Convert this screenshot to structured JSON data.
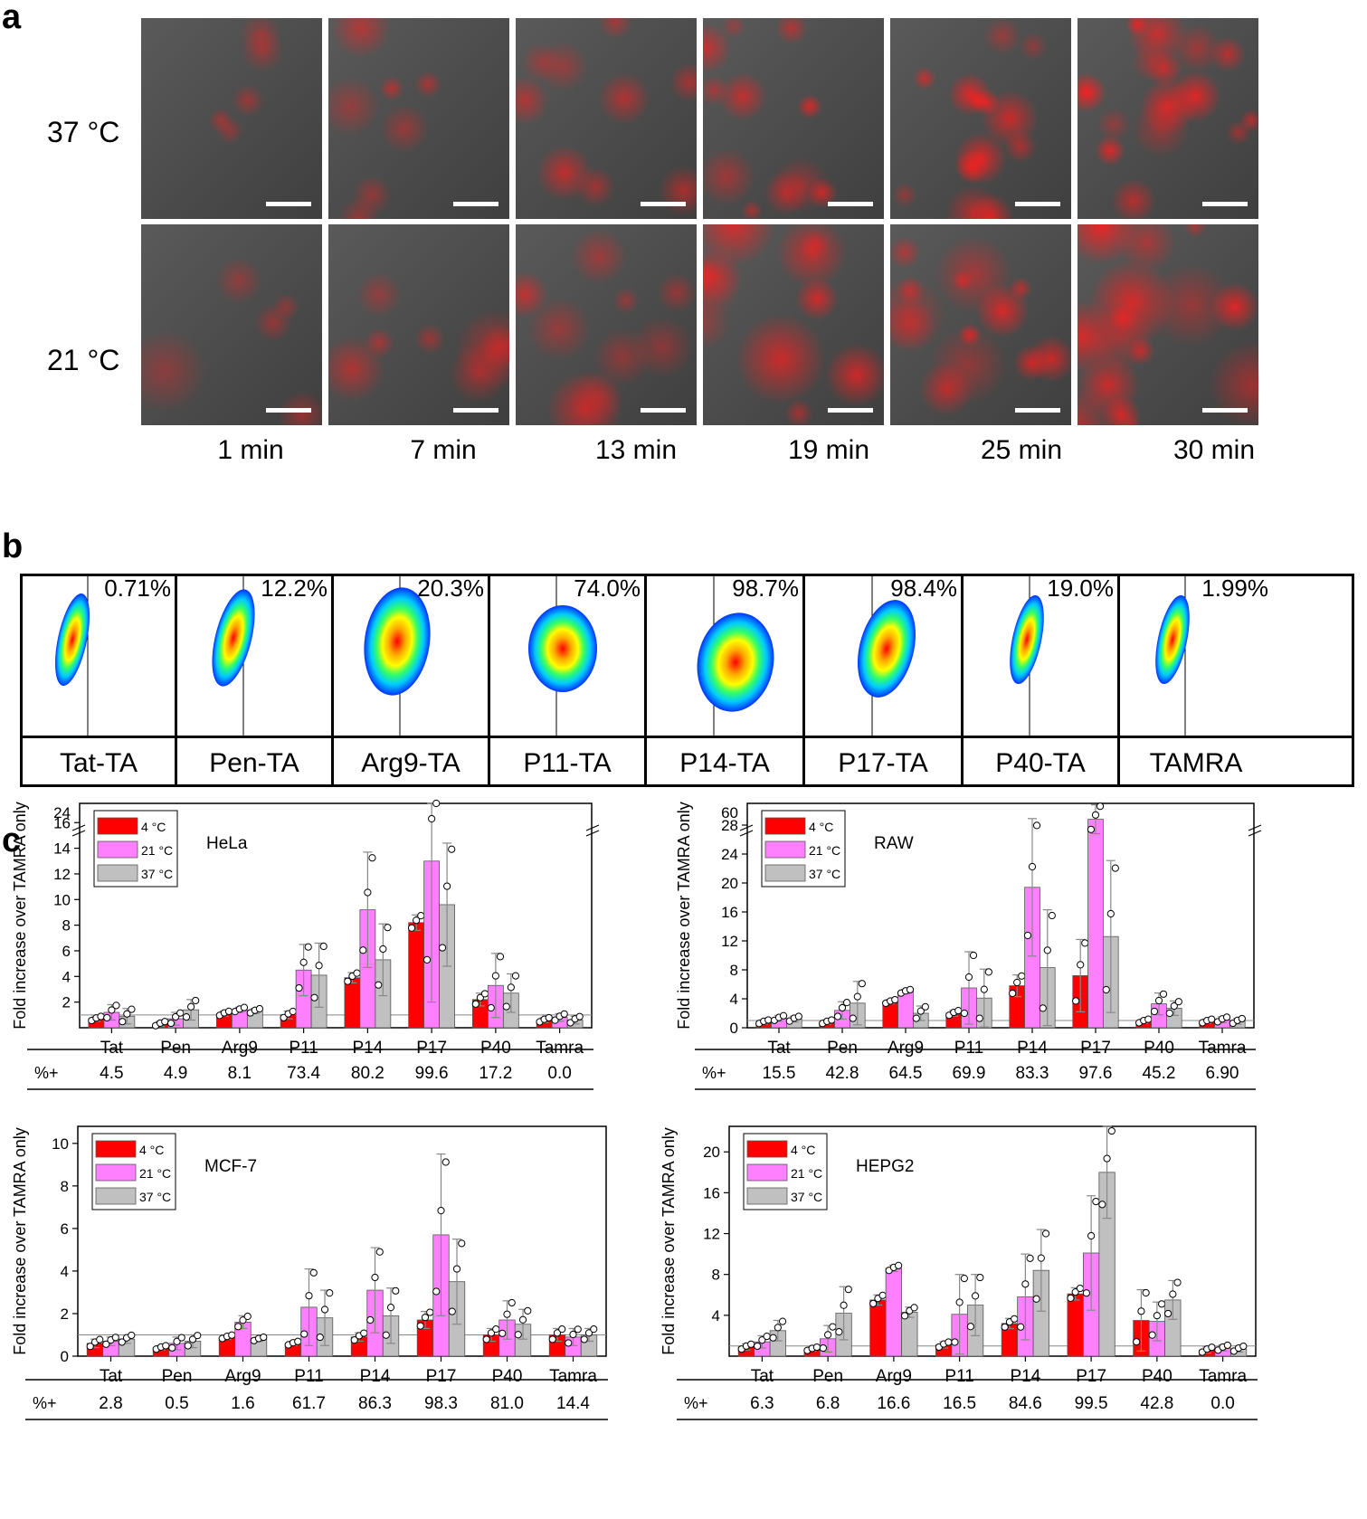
{
  "panel_a": {
    "letter": "a",
    "rows": [
      "37 °C",
      "21 °C"
    ],
    "times": [
      "1 min",
      "7 min",
      "13 min",
      "19 min",
      "25 min",
      "30 min"
    ]
  },
  "panel_b": {
    "letter": "b",
    "samples": [
      {
        "name": "Tat-TA",
        "percent": "0.71%"
      },
      {
        "name": "Pen-TA",
        "percent": "12.2%"
      },
      {
        "name": "Arg9-TA",
        "percent": "20.3%"
      },
      {
        "name": "P11-TA",
        "percent": "74.0%"
      },
      {
        "name": "P14-TA",
        "percent": "98.7%"
      },
      {
        "name": "P17-TA",
        "percent": "98.4%"
      },
      {
        "name": "P40-TA",
        "percent": "19.0%"
      },
      {
        "name": "TAMRA",
        "percent": "1.99%"
      }
    ]
  },
  "panel_c": {
    "letter": "c"
  },
  "chart_data": [
    {
      "type": "bar",
      "title": "HeLa",
      "ylabel": "Fold increase over TAMRA only",
      "categories": [
        "Tat",
        "Pen",
        "Arg9",
        "P11",
        "P14",
        "P17",
        "P40",
        "Tamra"
      ],
      "yticks": [
        2,
        4,
        6,
        8,
        10,
        12,
        14,
        16
      ],
      "break_label": "24",
      "ylim": [
        0,
        17.5
      ],
      "series": [
        {
          "name": "4 °C",
          "color": "#ff0000",
          "values": [
            0.7,
            0.3,
            1.1,
            1.0,
            3.9,
            8.2,
            2.2,
            0.6
          ],
          "err": [
            0.2,
            0.2,
            0.2,
            0.3,
            0.4,
            0.6,
            0.5,
            0.2
          ]
        },
        {
          "name": "21 °C",
          "color": "#ff80ff",
          "values": [
            1.2,
            0.7,
            1.4,
            4.5,
            9.2,
            13.0,
            3.3,
            0.8
          ],
          "err": [
            0.6,
            0.5,
            0.2,
            2.0,
            4.5,
            11.0,
            2.5,
            0.3
          ]
        },
        {
          "name": "37 °C",
          "color": "#c0c0c0",
          "values": [
            0.9,
            1.4,
            1.3,
            4.1,
            5.3,
            9.6,
            2.7,
            0.6
          ],
          "err": [
            0.6,
            0.8,
            0.2,
            2.5,
            2.8,
            4.8,
            1.5,
            0.3
          ]
        }
      ],
      "percent_label": "%+",
      "percent_positive": [
        "4.5",
        "4.9",
        "8.1",
        "73.4",
        "80.2",
        "99.6",
        "17.2",
        "0.0"
      ]
    },
    {
      "type": "bar",
      "title": "RAW",
      "ylabel": "Fold increase over TAMRA only",
      "categories": [
        "Tat",
        "Pen",
        "Arg9",
        "P11",
        "P14",
        "P17",
        "P40",
        "Tamra"
      ],
      "yticks": [
        0,
        4,
        8,
        12,
        16,
        20,
        24,
        28
      ],
      "break_label": "60",
      "ylim": [
        0,
        31
      ],
      "series": [
        {
          "name": "4 °C",
          "color": "#ff0000",
          "values": [
            0.8,
            0.8,
            3.6,
            2.0,
            5.8,
            7.2,
            0.9,
            0.9
          ],
          "err": [
            0.3,
            0.3,
            0.3,
            0.4,
            1.5,
            5.0,
            0.3,
            0.3
          ]
        },
        {
          "name": "21 °C",
          "color": "#ff80ff",
          "values": [
            1.3,
            2.4,
            5.0,
            5.5,
            19.4,
            28.8,
            3.3,
            1.1
          ],
          "err": [
            0.4,
            1.2,
            0.3,
            5.0,
            9.5,
            2.0,
            1.5,
            0.4
          ]
        },
        {
          "name": "37 °C",
          "color": "#c0c0c0",
          "values": [
            1.2,
            3.4,
            2.0,
            4.1,
            8.3,
            12.6,
            2.7,
            0.9
          ],
          "err": [
            0.4,
            3.0,
            1.0,
            4.0,
            8.0,
            10.5,
            1.0,
            0.4
          ]
        }
      ],
      "percent_label": "%+",
      "percent_positive": [
        "15.5",
        "42.8",
        "64.5",
        "69.9",
        "83.3",
        "97.6",
        "45.2",
        "6.90"
      ]
    },
    {
      "type": "bar",
      "title": "MCF-7",
      "ylabel": "Fold increase over TAMRA only",
      "categories": [
        "Tat",
        "Pen",
        "Arg9",
        "P11",
        "P14",
        "P17",
        "P40",
        "Tamra"
      ],
      "yticks": [
        0,
        2,
        4,
        6,
        8,
        10
      ],
      "break_label": "",
      "ylim": [
        0,
        10.8
      ],
      "series": [
        {
          "name": "4 °C",
          "color": "#ff0000",
          "values": [
            0.6,
            0.4,
            0.9,
            0.6,
            0.9,
            1.7,
            1.0,
            1.0
          ],
          "err": [
            0.2,
            0.1,
            0.1,
            0.1,
            0.2,
            0.4,
            0.3,
            0.3
          ]
        },
        {
          "name": "21 °C",
          "color": "#ff80ff",
          "values": [
            0.7,
            0.6,
            1.6,
            2.3,
            3.1,
            5.7,
            1.7,
            0.9
          ],
          "err": [
            0.2,
            0.3,
            0.3,
            1.8,
            2.0,
            3.8,
            0.9,
            0.4
          ]
        },
        {
          "name": "37 °C",
          "color": "#c0c0c0",
          "values": [
            0.8,
            0.7,
            0.8,
            1.8,
            1.9,
            3.5,
            1.5,
            1.0
          ],
          "err": [
            0.2,
            0.3,
            0.1,
            1.3,
            1.3,
            2.0,
            0.7,
            0.3
          ]
        }
      ],
      "percent_label": "%+",
      "percent_positive": [
        "2.8",
        "0.5",
        "1.6",
        "61.7",
        "86.3",
        "98.3",
        "81.0",
        "14.4"
      ]
    },
    {
      "type": "bar",
      "title": "HEPG2",
      "ylabel": "Fold increase over TAMRA only",
      "categories": [
        "Tat",
        "Pen",
        "Arg9",
        "P11",
        "P14",
        "P17",
        "P40",
        "Tamra"
      ],
      "yticks": [
        4,
        8,
        12,
        16,
        20
      ],
      "break_label": "",
      "ylim": [
        0,
        22.5
      ],
      "series": [
        {
          "name": "4 °C",
          "color": "#ff0000",
          "values": [
            0.9,
            0.7,
            5.5,
            1.1,
            3.2,
            6.1,
            3.5,
            0.6
          ],
          "err": [
            0.3,
            0.2,
            0.5,
            0.3,
            0.5,
            0.6,
            3.0,
            0.3
          ]
        },
        {
          "name": "21 °C",
          "color": "#ff80ff",
          "values": [
            1.4,
            1.7,
            8.6,
            4.1,
            5.8,
            10.1,
            3.4,
            0.8
          ],
          "err": [
            0.6,
            1.3,
            0.3,
            3.9,
            4.2,
            5.6,
            1.9,
            0.3
          ]
        },
        {
          "name": "37 °C",
          "color": "#c0c0c0",
          "values": [
            2.5,
            4.2,
            4.3,
            5.0,
            8.4,
            18.0,
            5.5,
            0.7
          ],
          "err": [
            1.0,
            2.6,
            0.5,
            3.0,
            4.0,
            4.5,
            1.9,
            0.3
          ]
        }
      ],
      "percent_label": "%+",
      "percent_positive": [
        "6.3",
        "6.8",
        "16.6",
        "16.5",
        "84.6",
        "99.5",
        "42.8",
        "0.0"
      ]
    }
  ]
}
